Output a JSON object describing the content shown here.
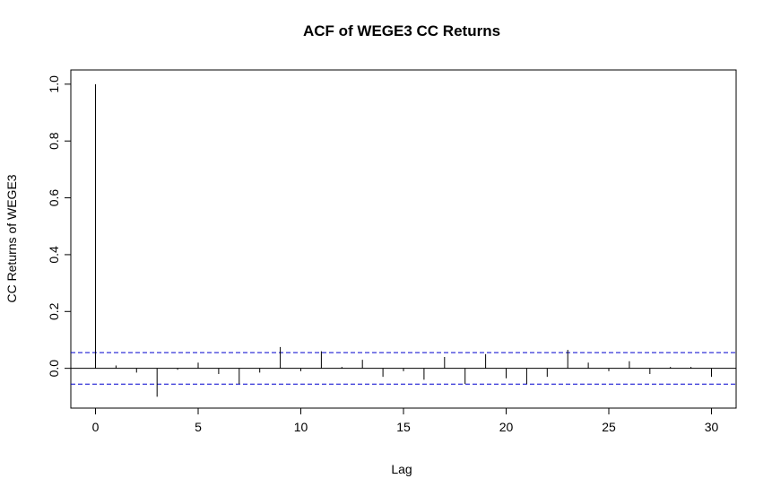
{
  "chart_data": {
    "type": "bar",
    "title": "ACF of WEGE3 CC Returns",
    "xlabel": "Lag",
    "ylabel": "CC Returns of WEGE3",
    "xlim": [
      -1.2,
      31.2
    ],
    "ylim": [
      -0.14,
      1.05
    ],
    "x_ticks": [
      0,
      5,
      10,
      15,
      20,
      25,
      30
    ],
    "y_ticks": [
      0.0,
      0.2,
      0.4,
      0.6,
      0.8,
      1.0
    ],
    "y_tick_labels": [
      "0.0",
      "0.2",
      "0.4",
      "0.6",
      "0.8",
      "1.0"
    ],
    "lags": [
      0,
      1,
      2,
      3,
      4,
      5,
      6,
      7,
      8,
      9,
      10,
      11,
      12,
      13,
      14,
      15,
      16,
      17,
      18,
      19,
      20,
      21,
      22,
      23,
      24,
      25,
      26,
      27,
      28,
      29,
      30
    ],
    "values": [
      1.0,
      0.01,
      -0.015,
      -0.1,
      -0.005,
      0.02,
      -0.02,
      -0.055,
      -0.015,
      0.075,
      -0.01,
      0.06,
      0.005,
      0.03,
      -0.03,
      -0.01,
      -0.04,
      0.04,
      -0.055,
      0.05,
      -0.035,
      -0.055,
      -0.03,
      0.065,
      0.02,
      -0.01,
      0.025,
      -0.02,
      0.005,
      0.005,
      -0.03
    ],
    "confidence_bound": 0.0555,
    "colors": {
      "lines": "#000000",
      "confidence": "#0000cd"
    },
    "grid": false
  }
}
